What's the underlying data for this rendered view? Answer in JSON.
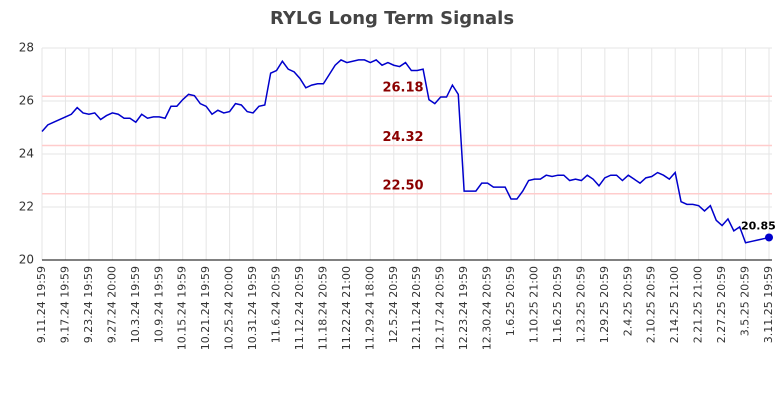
{
  "chart_data": {
    "type": "line",
    "title": "RYLG Long Term Signals",
    "categories": [
      "9.11.24 19:59",
      null,
      null,
      null,
      "9.17.24 19:59",
      null,
      null,
      null,
      "9.23.24 19:59",
      null,
      null,
      null,
      "9.27.24 20:00",
      null,
      null,
      null,
      "10.3.24 19:59",
      null,
      null,
      null,
      "10.9.24 19:59",
      null,
      null,
      null,
      "10.15.24 19:59",
      null,
      null,
      null,
      "10.21.24 19:59",
      null,
      null,
      null,
      "10.25.24 20:00",
      null,
      null,
      null,
      "10.31.24 19:59",
      null,
      null,
      null,
      "11.6.24 20:59",
      null,
      null,
      null,
      "11.12.24 20:59",
      null,
      null,
      null,
      "11.18.24 20:59",
      null,
      null,
      null,
      "11.22.24 21:00",
      null,
      null,
      null,
      "11.29.24 18:00",
      null,
      null,
      null,
      "12.5.24 20:59",
      null,
      null,
      null,
      "12.11.24 20:59",
      null,
      null,
      null,
      "12.17.24 20:59",
      null,
      null,
      null,
      "12.23.24 19:59",
      null,
      null,
      null,
      "12.30.24 20:59",
      null,
      null,
      null,
      "1.6.25 20:59",
      null,
      null,
      null,
      "1.10.25 21:00",
      null,
      null,
      null,
      "1.16.25 20:59",
      null,
      null,
      null,
      "1.23.25 20:59",
      null,
      null,
      null,
      "1.29.25 20:59",
      null,
      null,
      null,
      "2.4.25 20:59",
      null,
      null,
      null,
      "2.10.25 20:59",
      null,
      null,
      null,
      "2.14.25 21:00",
      null,
      null,
      null,
      "2.21.25 21:00",
      null,
      null,
      null,
      "2.27.25 20:59",
      null,
      null,
      null,
      "3.5.25 20:59",
      null,
      null,
      null,
      "3.11.25 19:59"
    ],
    "values": [
      24.85,
      25.1,
      25.2,
      25.3,
      25.4,
      25.5,
      25.75,
      25.55,
      25.5,
      25.55,
      25.3,
      25.45,
      25.55,
      25.5,
      25.35,
      25.35,
      25.2,
      25.5,
      25.35,
      25.4,
      25.4,
      25.35,
      25.8,
      25.8,
      26.05,
      26.25,
      26.2,
      25.9,
      25.8,
      25.5,
      25.65,
      25.55,
      25.6,
      25.9,
      25.85,
      25.6,
      25.55,
      25.8,
      25.85,
      27.05,
      27.15,
      27.5,
      27.2,
      27.1,
      26.85,
      26.5,
      26.6,
      26.65,
      26.65,
      27.0,
      27.35,
      27.55,
      27.45,
      27.5,
      27.55,
      27.55,
      27.45,
      27.55,
      27.35,
      27.45,
      27.35,
      27.3,
      27.45,
      27.15,
      27.15,
      27.2,
      26.05,
      25.9,
      26.15,
      26.15,
      26.6,
      26.25,
      22.6,
      22.6,
      22.6,
      22.9,
      22.9,
      22.75,
      22.75,
      22.75,
      22.3,
      22.3,
      22.6,
      23.0,
      23.05,
      23.05,
      23.2,
      23.15,
      23.2,
      23.2,
      23.0,
      23.05,
      23.0,
      23.2,
      23.05,
      22.8,
      23.1,
      23.2,
      23.2,
      23.0,
      23.2,
      23.05,
      22.9,
      23.1,
      23.15,
      23.3,
      23.2,
      23.05,
      23.3,
      22.2,
      22.1,
      22.1,
      22.05,
      21.85,
      22.05,
      21.5,
      21.3,
      21.55,
      21.1,
      21.25,
      20.65,
      20.7,
      20.75,
      20.8,
      20.85
    ],
    "color": "#0000cc",
    "levels": [
      {
        "value": 26.18,
        "label": "26.18"
      },
      {
        "value": 24.32,
        "label": "24.32"
      },
      {
        "value": 22.5,
        "label": "22.50"
      }
    ],
    "level_color": "#ffcccc",
    "level_label_color": "#8b0000",
    "ylim": [
      20,
      28
    ],
    "yticks": [
      20,
      22,
      24,
      26,
      28
    ],
    "grid": true
  }
}
